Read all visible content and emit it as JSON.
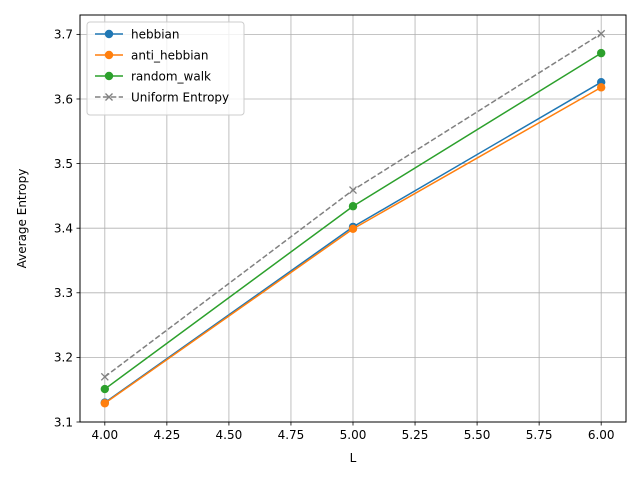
{
  "chart_data": {
    "type": "line",
    "title": "",
    "xlabel": "L",
    "ylabel": "Average Entropy",
    "xlim": [
      3.9,
      6.1
    ],
    "ylim": [
      3.1,
      3.73
    ],
    "xticks": [
      4.0,
      4.25,
      4.5,
      4.75,
      5.0,
      5.25,
      5.5,
      5.75,
      6.0
    ],
    "xtick_labels": [
      "4.00",
      "4.25",
      "4.50",
      "4.75",
      "5.00",
      "5.25",
      "5.50",
      "5.75",
      "6.00"
    ],
    "yticks": [
      3.1,
      3.2,
      3.3,
      3.4,
      3.5,
      3.6,
      3.7
    ],
    "ytick_labels": [
      "3.1",
      "3.2",
      "3.3",
      "3.4",
      "3.5",
      "3.6",
      "3.7"
    ],
    "grid": true,
    "legend_position": "top-left",
    "x": [
      4.0,
      5.0,
      6.0
    ],
    "series": [
      {
        "name": "hebbian",
        "values": [
          3.13,
          3.402,
          3.626
        ],
        "color": "#1f77b4",
        "marker": "circle",
        "dash": "solid"
      },
      {
        "name": "anti_hebbian",
        "values": [
          3.129,
          3.399,
          3.618
        ],
        "color": "#ff7f0e",
        "marker": "circle",
        "dash": "solid"
      },
      {
        "name": "random_walk",
        "values": [
          3.151,
          3.434,
          3.671
        ],
        "color": "#2ca02c",
        "marker": "circle",
        "dash": "solid"
      },
      {
        "name": "Uniform Entropy",
        "values": [
          3.17,
          3.459,
          3.701
        ],
        "color": "#808080",
        "marker": "x",
        "dash": "dashed"
      }
    ]
  }
}
